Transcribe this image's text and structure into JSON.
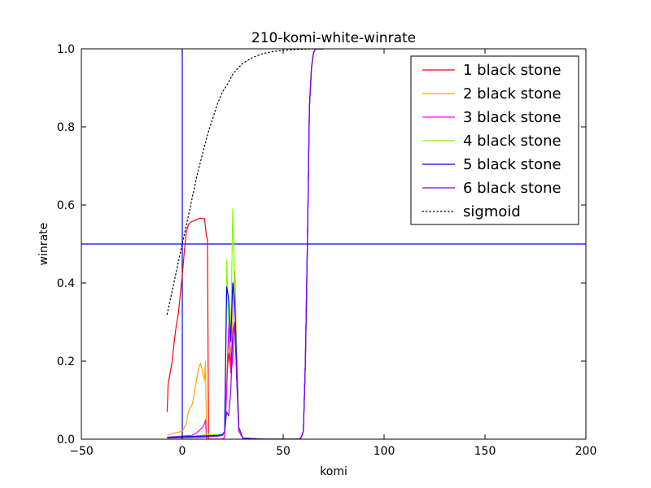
{
  "chart_data": {
    "type": "line",
    "title": "210-komi-white-winrate",
    "xlabel": "komi",
    "ylabel": "winrate",
    "xlim": [
      -50,
      200
    ],
    "ylim": [
      0.0,
      1.0
    ],
    "xticks": [
      -50,
      0,
      50,
      100,
      150,
      200
    ],
    "xtick_labels": [
      "−50",
      "0",
      "50",
      "100",
      "150",
      "200"
    ],
    "yticks": [
      0.0,
      0.2,
      0.4,
      0.6,
      0.8,
      1.0
    ],
    "ytick_labels": [
      "0.0",
      "0.2",
      "0.4",
      "0.6",
      "0.8",
      "1.0"
    ],
    "grid": false,
    "legend_position": "top-right",
    "reference_lines": [
      {
        "orientation": "vertical",
        "value": 0,
        "color": "#0000ff"
      },
      {
        "orientation": "horizontal",
        "value": 0.5,
        "color": "#0000ff"
      }
    ],
    "series": [
      {
        "name": "1 black stone",
        "color": "#ff0000",
        "style": "solid",
        "points": [
          [
            -7.5,
            0.07
          ],
          [
            -7,
            0.14
          ],
          [
            -6,
            0.17
          ],
          [
            -5,
            0.2
          ],
          [
            -4,
            0.25
          ],
          [
            -3,
            0.29
          ],
          [
            -2,
            0.32
          ],
          [
            -1,
            0.37
          ],
          [
            0,
            0.42
          ],
          [
            1,
            0.48
          ],
          [
            2,
            0.53
          ],
          [
            3,
            0.55
          ],
          [
            4,
            0.555
          ],
          [
            5,
            0.558
          ],
          [
            6,
            0.56
          ],
          [
            7,
            0.562
          ],
          [
            8,
            0.565
          ],
          [
            9,
            0.566
          ],
          [
            10,
            0.565
          ],
          [
            11,
            0.565
          ],
          [
            12,
            0.52
          ],
          [
            12.5,
            0.51
          ],
          [
            13,
            0.0
          ],
          [
            20,
            0.0
          ],
          [
            21,
            0.005
          ],
          [
            22,
            0.15
          ],
          [
            23,
            0.22
          ],
          [
            24,
            0.18
          ],
          [
            25,
            0.3
          ],
          [
            26,
            0.43
          ],
          [
            27,
            0.2
          ],
          [
            28,
            0.02
          ],
          [
            30,
            0.003
          ],
          [
            40,
            0.0
          ],
          [
            58,
            0.0
          ],
          [
            59,
            0.005
          ],
          [
            60,
            0.02
          ],
          [
            61,
            0.2
          ],
          [
            62,
            0.5
          ],
          [
            63,
            0.85
          ],
          [
            64,
            0.95
          ],
          [
            65,
            0.99
          ],
          [
            66,
            1.0
          ],
          [
            70,
            1.0
          ]
        ]
      },
      {
        "name": "2 black stone",
        "color": "#ffa500",
        "style": "solid",
        "points": [
          [
            -7.5,
            0.01
          ],
          [
            -5,
            0.015
          ],
          [
            0,
            0.02
          ],
          [
            2,
            0.04
          ],
          [
            3,
            0.07
          ],
          [
            4,
            0.08
          ],
          [
            5,
            0.09
          ],
          [
            6,
            0.12
          ],
          [
            7,
            0.15
          ],
          [
            8,
            0.18
          ],
          [
            9,
            0.195
          ],
          [
            10,
            0.175
          ],
          [
            11,
            0.15
          ],
          [
            11.5,
            0.2
          ],
          [
            12,
            0.0
          ],
          [
            20,
            0.0
          ],
          [
            21,
            0.005
          ],
          [
            22,
            0.15
          ],
          [
            23,
            0.26
          ],
          [
            24,
            0.22
          ],
          [
            25,
            0.3
          ],
          [
            26,
            0.4
          ],
          [
            27,
            0.22
          ],
          [
            28,
            0.03
          ],
          [
            30,
            0.003
          ],
          [
            40,
            0.0
          ],
          [
            58,
            0.0
          ],
          [
            59,
            0.005
          ],
          [
            60,
            0.02
          ],
          [
            61,
            0.2
          ],
          [
            62,
            0.5
          ],
          [
            63,
            0.85
          ],
          [
            64,
            0.95
          ],
          [
            65,
            0.99
          ],
          [
            66,
            1.0
          ],
          [
            70,
            1.0
          ]
        ]
      },
      {
        "name": "3 black stone",
        "color": "#ff00ff",
        "style": "solid",
        "points": [
          [
            -7.5,
            0.005
          ],
          [
            0,
            0.008
          ],
          [
            5,
            0.01
          ],
          [
            8,
            0.02
          ],
          [
            10,
            0.03
          ],
          [
            11,
            0.04
          ],
          [
            11.5,
            0.05
          ],
          [
            12,
            0.0
          ],
          [
            20,
            0.0
          ],
          [
            21,
            0.005
          ],
          [
            22,
            0.12
          ],
          [
            23,
            0.3
          ],
          [
            24,
            0.17
          ],
          [
            25,
            0.2
          ],
          [
            26,
            0.3
          ],
          [
            27,
            0.15
          ],
          [
            28,
            0.02
          ],
          [
            30,
            0.003
          ],
          [
            40,
            0.0
          ],
          [
            58,
            0.0
          ],
          [
            59,
            0.005
          ],
          [
            60,
            0.02
          ],
          [
            61,
            0.2
          ],
          [
            62,
            0.5
          ],
          [
            63,
            0.85
          ],
          [
            64,
            0.95
          ],
          [
            65,
            0.99
          ],
          [
            66,
            1.0
          ],
          [
            70,
            1.0
          ]
        ]
      },
      {
        "name": "4 black stone",
        "color": "#7fff00",
        "style": "solid",
        "points": [
          [
            -7.5,
            0.005
          ],
          [
            0,
            0.006
          ],
          [
            10,
            0.01
          ],
          [
            12,
            0.012
          ],
          [
            18,
            0.012
          ],
          [
            20,
            0.013
          ],
          [
            21,
            0.02
          ],
          [
            22,
            0.46
          ],
          [
            23,
            0.3
          ],
          [
            24,
            0.25
          ],
          [
            25,
            0.59
          ],
          [
            26,
            0.4
          ],
          [
            27,
            0.2
          ],
          [
            28,
            0.03
          ],
          [
            30,
            0.003
          ],
          [
            40,
            0.0
          ],
          [
            58,
            0.0
          ],
          [
            59,
            0.005
          ],
          [
            60,
            0.02
          ],
          [
            61,
            0.2
          ],
          [
            62,
            0.5
          ],
          [
            63,
            0.85
          ],
          [
            64,
            0.95
          ],
          [
            65,
            0.99
          ],
          [
            66,
            1.0
          ],
          [
            70,
            1.0
          ]
        ]
      },
      {
        "name": "5 black stone",
        "color": "#0000ff",
        "style": "solid",
        "points": [
          [
            -7.5,
            0.005
          ],
          [
            0,
            0.006
          ],
          [
            10,
            0.008
          ],
          [
            18,
            0.01
          ],
          [
            20,
            0.012
          ],
          [
            21,
            0.02
          ],
          [
            22,
            0.39
          ],
          [
            23,
            0.36
          ],
          [
            24,
            0.25
          ],
          [
            25,
            0.4
          ],
          [
            26,
            0.35
          ],
          [
            27,
            0.18
          ],
          [
            28,
            0.03
          ],
          [
            30,
            0.003
          ],
          [
            40,
            0.0
          ],
          [
            58,
            0.0
          ],
          [
            59,
            0.005
          ],
          [
            60,
            0.02
          ],
          [
            61,
            0.2
          ],
          [
            62,
            0.5
          ],
          [
            63,
            0.85
          ],
          [
            64,
            0.95
          ],
          [
            65,
            0.99
          ],
          [
            66,
            1.0
          ],
          [
            70,
            1.0
          ]
        ]
      },
      {
        "name": "6 black stone",
        "color": "#8000ff",
        "style": "solid",
        "points": [
          [
            -7.5,
            0.003
          ],
          [
            0,
            0.004
          ],
          [
            10,
            0.005
          ],
          [
            18,
            0.008
          ],
          [
            20,
            0.01
          ],
          [
            21,
            0.02
          ],
          [
            22,
            0.07
          ],
          [
            23,
            0.06
          ],
          [
            24,
            0.12
          ],
          [
            25,
            0.27
          ],
          [
            26,
            0.3
          ],
          [
            27,
            0.15
          ],
          [
            28,
            0.03
          ],
          [
            30,
            0.003
          ],
          [
            40,
            0.0
          ],
          [
            58,
            0.0
          ],
          [
            59,
            0.005
          ],
          [
            60,
            0.02
          ],
          [
            61,
            0.2
          ],
          [
            62,
            0.5
          ],
          [
            63,
            0.85
          ],
          [
            64,
            0.95
          ],
          [
            65,
            0.99
          ],
          [
            66,
            1.0
          ],
          [
            70,
            1.0
          ]
        ]
      },
      {
        "name": "sigmoid",
        "color": "#000000",
        "style": "dotted",
        "points": [
          [
            -7.5,
            0.32
          ],
          [
            -5,
            0.38
          ],
          [
            -2.5,
            0.44
          ],
          [
            0,
            0.5
          ],
          [
            2.5,
            0.56
          ],
          [
            5,
            0.62
          ],
          [
            7.5,
            0.68
          ],
          [
            10,
            0.73
          ],
          [
            12.5,
            0.78
          ],
          [
            15,
            0.82
          ],
          [
            17.5,
            0.86
          ],
          [
            20,
            0.89
          ],
          [
            22.5,
            0.91
          ],
          [
            25,
            0.935
          ],
          [
            27.5,
            0.95
          ],
          [
            30,
            0.963
          ],
          [
            35,
            0.978
          ],
          [
            40,
            0.988
          ],
          [
            45,
            0.993
          ],
          [
            50,
            0.996
          ],
          [
            55,
            0.998
          ],
          [
            60,
            0.999
          ],
          [
            66,
            1.0
          ],
          [
            70,
            1.0
          ]
        ]
      }
    ]
  }
}
